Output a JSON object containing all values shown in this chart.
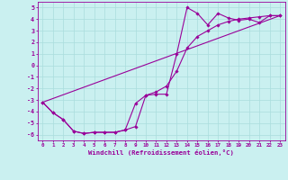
{
  "xlabel": "Windchill (Refroidissement éolien,°C)",
  "background_color": "#caf0f0",
  "grid_color": "#aadddd",
  "line_color": "#990099",
  "x_hours": [
    0,
    1,
    2,
    3,
    4,
    5,
    6,
    7,
    8,
    9,
    10,
    11,
    12,
    13,
    14,
    15,
    16,
    17,
    18,
    19,
    20,
    21,
    22,
    23
  ],
  "line1_y": [
    -3.2,
    -4.1,
    -4.7,
    -5.7,
    -5.9,
    -5.8,
    -5.8,
    -5.8,
    -5.6,
    -3.3,
    -2.6,
    -2.3,
    -1.8,
    -0.5,
    1.5,
    2.5,
    3.0,
    3.5,
    3.8,
    4.0,
    4.1,
    4.2,
    4.3,
    4.3
  ],
  "line2_y": [
    -3.2,
    -4.1,
    -4.7,
    -5.7,
    -5.9,
    -5.8,
    -5.8,
    -5.8,
    -5.6,
    -5.3,
    -2.6,
    -2.5,
    -2.5,
    1.0,
    5.0,
    4.5,
    3.5,
    4.5,
    4.1,
    3.9,
    4.0,
    3.7,
    4.3,
    4.3
  ],
  "line3_x": [
    0,
    23
  ],
  "line3_y": [
    -3.2,
    4.3
  ],
  "ylim": [
    -6.5,
    5.5
  ],
  "xlim": [
    -0.5,
    23.5
  ],
  "yticks": [
    -6,
    -5,
    -4,
    -3,
    -2,
    -1,
    0,
    1,
    2,
    3,
    4,
    5
  ],
  "xticks": [
    0,
    1,
    2,
    3,
    4,
    5,
    6,
    7,
    8,
    9,
    10,
    11,
    12,
    13,
    14,
    15,
    16,
    17,
    18,
    19,
    20,
    21,
    22,
    23
  ]
}
